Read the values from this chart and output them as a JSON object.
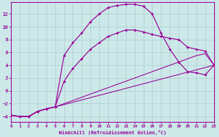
{
  "xlabel": "Windchill (Refroidissement éolien,°C)",
  "background_color": "#cce8e8",
  "grid_color": "#aacccc",
  "line_color": "#990099",
  "xlim": [
    0,
    23
  ],
  "ylim": [
    -4.8,
    13.8
  ],
  "xticks": [
    0,
    1,
    2,
    3,
    4,
    5,
    6,
    7,
    8,
    9,
    10,
    11,
    12,
    13,
    14,
    15,
    16,
    17,
    18,
    19,
    20,
    21,
    22,
    23
  ],
  "yticks": [
    -4,
    -2,
    0,
    2,
    4,
    6,
    8,
    10,
    12
  ],
  "curve_top_x": [
    0,
    1,
    2,
    3,
    4,
    5,
    6,
    7,
    8,
    9,
    10,
    11,
    12,
    13,
    14,
    15,
    16,
    17,
    18,
    19,
    20,
    21,
    22,
    23
  ],
  "curve_top_y": [
    -3.8,
    -4.0,
    -4.0,
    -3.2,
    -2.8,
    -2.5,
    5.5,
    7.5,
    9.0,
    10.8,
    12.0,
    13.0,
    13.3,
    13.5,
    13.5,
    13.2,
    12.0,
    9.0,
    6.5,
    4.5,
    3.0,
    2.8,
    2.5,
    4.0
  ],
  "curve_mid_x": [
    0,
    1,
    2,
    3,
    4,
    5,
    6,
    7,
    8,
    9,
    10,
    11,
    12,
    13,
    14,
    15,
    16,
    17,
    18,
    19,
    20,
    21,
    22,
    23
  ],
  "curve_mid_y": [
    -3.8,
    -4.0,
    -4.0,
    -3.2,
    -2.8,
    -2.5,
    1.5,
    3.5,
    5.0,
    6.5,
    7.5,
    8.5,
    9.0,
    9.5,
    9.5,
    9.2,
    8.8,
    8.5,
    8.2,
    8.0,
    6.8,
    6.5,
    6.2,
    4.0
  ],
  "curve_low1_x": [
    0,
    1,
    2,
    3,
    4,
    5,
    6,
    7,
    8,
    9,
    10,
    11,
    12,
    13,
    14,
    15,
    16,
    17,
    18,
    19,
    20,
    21,
    22,
    23
  ],
  "curve_low1_y": [
    -3.8,
    -4.0,
    -4.0,
    -3.2,
    -2.8,
    -2.5,
    -2.0,
    -1.5,
    -1.0,
    -0.5,
    0.0,
    0.5,
    1.0,
    1.5,
    2.0,
    2.5,
    3.0,
    3.5,
    4.0,
    4.5,
    5.0,
    5.5,
    5.8,
    4.0
  ],
  "curve_low2_x": [
    0,
    1,
    2,
    3,
    4,
    5,
    23
  ],
  "curve_low2_y": [
    -3.8,
    -4.0,
    -4.0,
    -3.2,
    -2.8,
    -2.5,
    4.0
  ]
}
